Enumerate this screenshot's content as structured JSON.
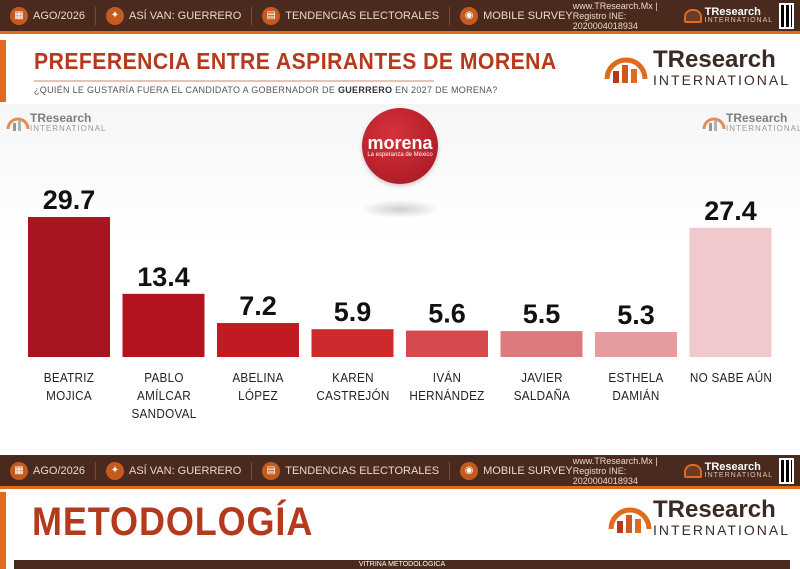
{
  "header_bar": {
    "date": "AGO/2026",
    "asi_van": "ASÍ VAN: GUERRERO",
    "tendencias": "TENDENCIAS ELECTORALES",
    "mobile": "MOBILE SURVEY",
    "website": "www.TResearch.Mx | Registro INE: 2020004018934",
    "logo_top": "TResearch",
    "logo_sub": "INTERNATIONAL"
  },
  "panel": {
    "title": "PREFERENCIA ENTRE ASPIRANTES DE MORENA",
    "subtitle_pre": "¿QUIÉN LE GUSTARÍA FUERA EL CANDIDATO A GOBERNADOR DE ",
    "subtitle_bold": "GUERRERO",
    "subtitle_post": " EN 2027 DE MORENA?",
    "logo_top": "TResearch",
    "logo_sub": "INTERNATIONAL"
  },
  "corner_logos": {
    "top": "TResearch",
    "sub": "INTERNATIONAL"
  },
  "party_badge": {
    "name": "morena",
    "tagline": "La esperanza de México"
  },
  "chart_data": {
    "type": "bar",
    "categories": [
      "BEATRIZ MOJICA",
      "PABLO AMÍLCAR SANDOVAL",
      "ABELINA LÓPEZ",
      "KAREN CASTREJÓN",
      "IVÁN HERNÁNDEZ",
      "JAVIER SALDAÑA",
      "ESTHELA DAMIÁN",
      "NO SABE AÚN"
    ],
    "category_lines": [
      [
        "BEATRIZ MOJICA"
      ],
      [
        "PABLO AMÍLCAR",
        "SANDOVAL"
      ],
      [
        "ABELINA LÓPEZ"
      ],
      [
        "KAREN",
        "CASTREJÓN"
      ],
      [
        "IVÁN",
        "HERNÁNDEZ"
      ],
      [
        "JAVIER",
        "SALDAÑA"
      ],
      [
        "ESTHELA",
        "DAMIÁN"
      ],
      [
        "NO SABE AÚN"
      ]
    ],
    "values": [
      29.7,
      13.4,
      7.2,
      5.9,
      5.6,
      5.5,
      5.3,
      27.4
    ],
    "value_labels": [
      "29.7",
      "13.4",
      "7.2",
      "5.9",
      "5.6",
      "5.5",
      "5.3",
      "27.4"
    ],
    "colors": [
      "#a8141f",
      "#b3131c",
      "#c01a22",
      "#cd2a2e",
      "#d64a4d",
      "#dd7a7d",
      "#e59c9e",
      "#efc9cb"
    ],
    "ylim": [
      0,
      32
    ],
    "grid": false,
    "title": "PREFERENCIA ENTRE ASPIRANTES DE MORENA"
  },
  "footer_bar": {
    "date": "AGO/2026",
    "asi_van": "ASÍ VAN: GUERRERO",
    "tendencias": "TENDENCIAS ELECTORALES",
    "mobile": "MOBILE SURVEY",
    "website": "www.TResearch.Mx | Registro INE: 2020004018934",
    "logo_top": "TResearch",
    "logo_sub": "INTERNATIONAL"
  },
  "methodology": {
    "title": "METODOLOGÍA",
    "logo_top": "TResearch",
    "logo_sub": "INTERNATIONAL",
    "vitrina": "VITRINA METODOLÓGICA"
  }
}
